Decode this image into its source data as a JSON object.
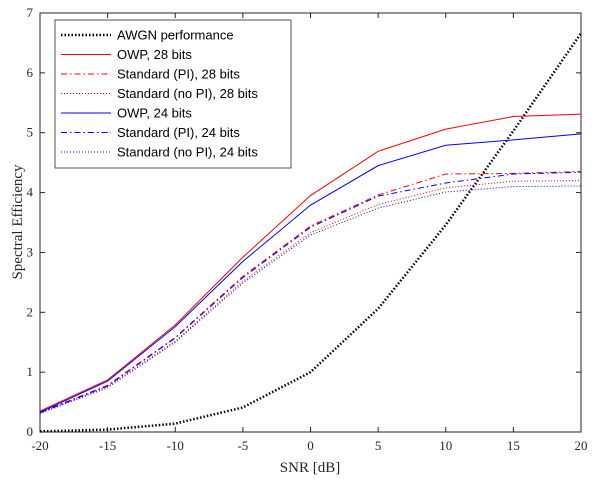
{
  "chart_data": {
    "type": "line",
    "xlabel": "SNR [dB]",
    "ylabel": "Spectral Efficiency",
    "xlim": [
      -20,
      20
    ],
    "ylim": [
      0,
      7
    ],
    "xticks": [
      -20,
      -15,
      -10,
      -5,
      0,
      5,
      10,
      15,
      20
    ],
    "yticks": [
      0,
      1,
      2,
      3,
      4,
      5,
      6,
      7
    ],
    "grid": false,
    "legend_position": "top-left",
    "x": [
      -20,
      -15,
      -10,
      -5,
      0,
      5,
      10,
      15,
      20
    ],
    "series": [
      {
        "name": "AWGN performance",
        "color": "#000000",
        "style": "dotted-thick",
        "values": [
          0.01,
          0.04,
          0.14,
          0.41,
          1.0,
          2.06,
          3.46,
          5.03,
          6.66
        ]
      },
      {
        "name": "OWP, 28 bits",
        "color": "#ff0000",
        "style": "solid",
        "values": [
          0.35,
          0.87,
          1.79,
          2.92,
          3.95,
          4.69,
          5.06,
          5.27,
          5.31
        ]
      },
      {
        "name": "Standard (PI), 28 bits",
        "color": "#ff0000",
        "style": "dashdot",
        "values": [
          0.33,
          0.78,
          1.58,
          2.6,
          3.44,
          3.96,
          4.31,
          4.32,
          4.35
        ]
      },
      {
        "name": "Standard (no PI), 28 bits",
        "color": "#ff0000",
        "style": "dotted",
        "values": [
          0.32,
          0.76,
          1.52,
          2.52,
          3.33,
          3.8,
          4.08,
          4.19,
          4.2
        ]
      },
      {
        "name": "OWP, 24 bits",
        "color": "#0000ff",
        "style": "solid",
        "values": [
          0.33,
          0.85,
          1.76,
          2.85,
          3.79,
          4.45,
          4.79,
          4.88,
          4.98
        ]
      },
      {
        "name": "Standard (PI), 24 bits",
        "color": "#0000ff",
        "style": "dashdot",
        "values": [
          0.32,
          0.77,
          1.57,
          2.58,
          3.42,
          3.94,
          4.16,
          4.31,
          4.34
        ]
      },
      {
        "name": "Standard (no PI), 24 bits",
        "color": "#0000ff",
        "style": "dotted",
        "values": [
          0.31,
          0.74,
          1.5,
          2.49,
          3.29,
          3.74,
          4.01,
          4.1,
          4.11
        ]
      }
    ]
  }
}
